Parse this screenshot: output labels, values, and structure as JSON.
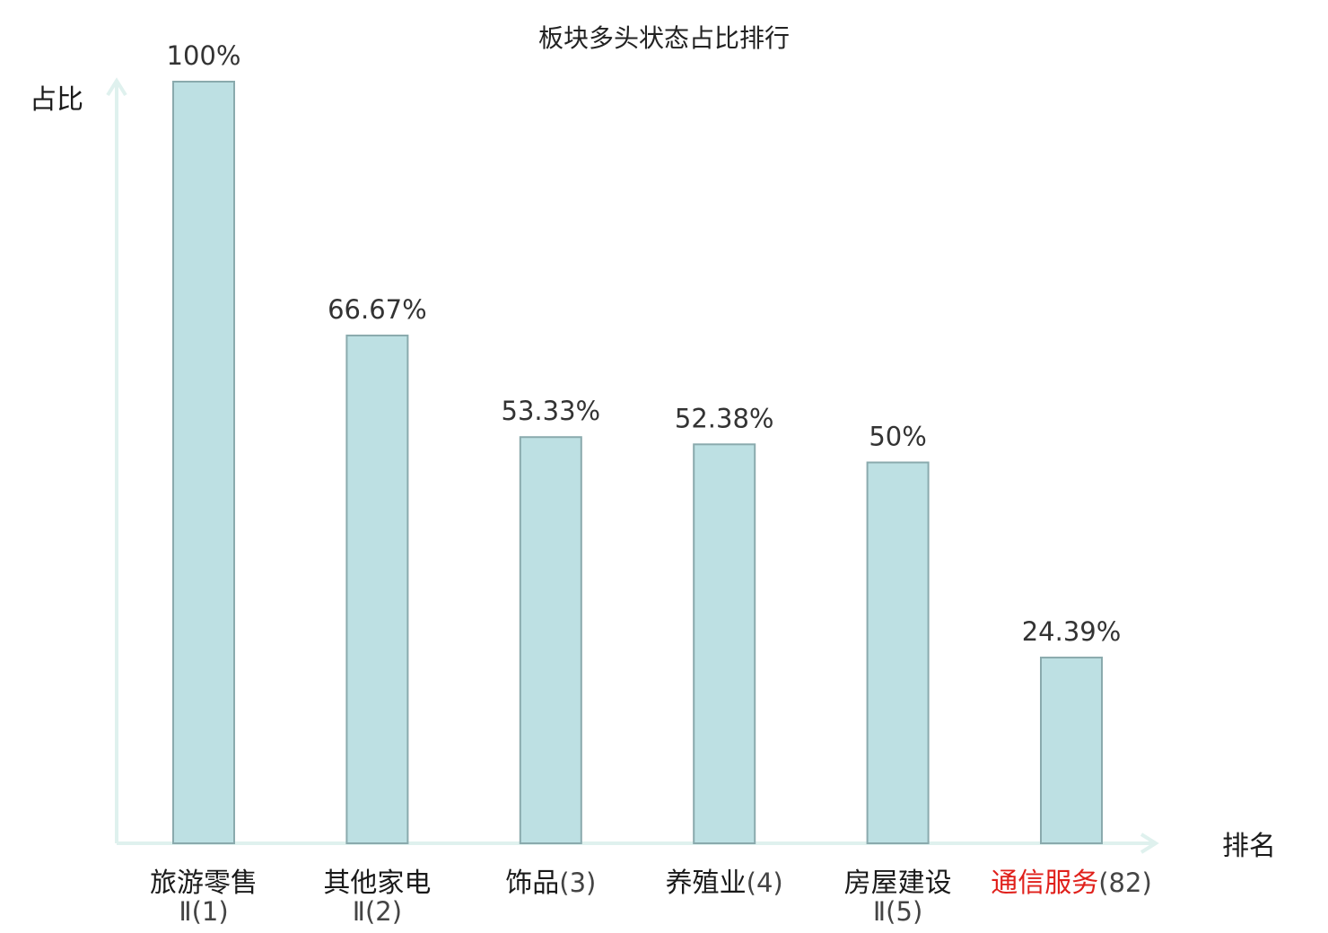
{
  "chart_data": {
    "type": "bar",
    "title": "板块多头状态占比排行",
    "ylabel": "占比",
    "xlabel": "排名",
    "ylim": [
      0,
      100
    ],
    "grid": false,
    "categories": [
      {
        "name": "旅游零售",
        "rank": "Ⅱ(1)",
        "rank_on_second_line": true,
        "highlight": false
      },
      {
        "name": "其他家电",
        "rank": "Ⅱ(2)",
        "rank_on_second_line": true,
        "highlight": false
      },
      {
        "name": "饰品",
        "rank": "(3)",
        "rank_on_second_line": false,
        "highlight": false
      },
      {
        "name": "养殖业",
        "rank": "(4)",
        "rank_on_second_line": false,
        "highlight": false
      },
      {
        "name": "房屋建设",
        "rank": "Ⅱ(5)",
        "rank_on_second_line": true,
        "highlight": false
      },
      {
        "name": "通信服务",
        "rank": "(82)",
        "rank_on_second_line": false,
        "highlight": true
      }
    ],
    "values": [
      100,
      66.67,
      53.33,
      52.38,
      50,
      24.39
    ],
    "value_labels": [
      "100%",
      "66.67%",
      "53.33%",
      "52.38%",
      "50%",
      "24.39%"
    ]
  },
  "colors": {
    "bar_fill": "#bde0e3",
    "bar_stroke": "#8aaaad",
    "axis": "#dff1ee",
    "highlight": "#e0201b"
  }
}
